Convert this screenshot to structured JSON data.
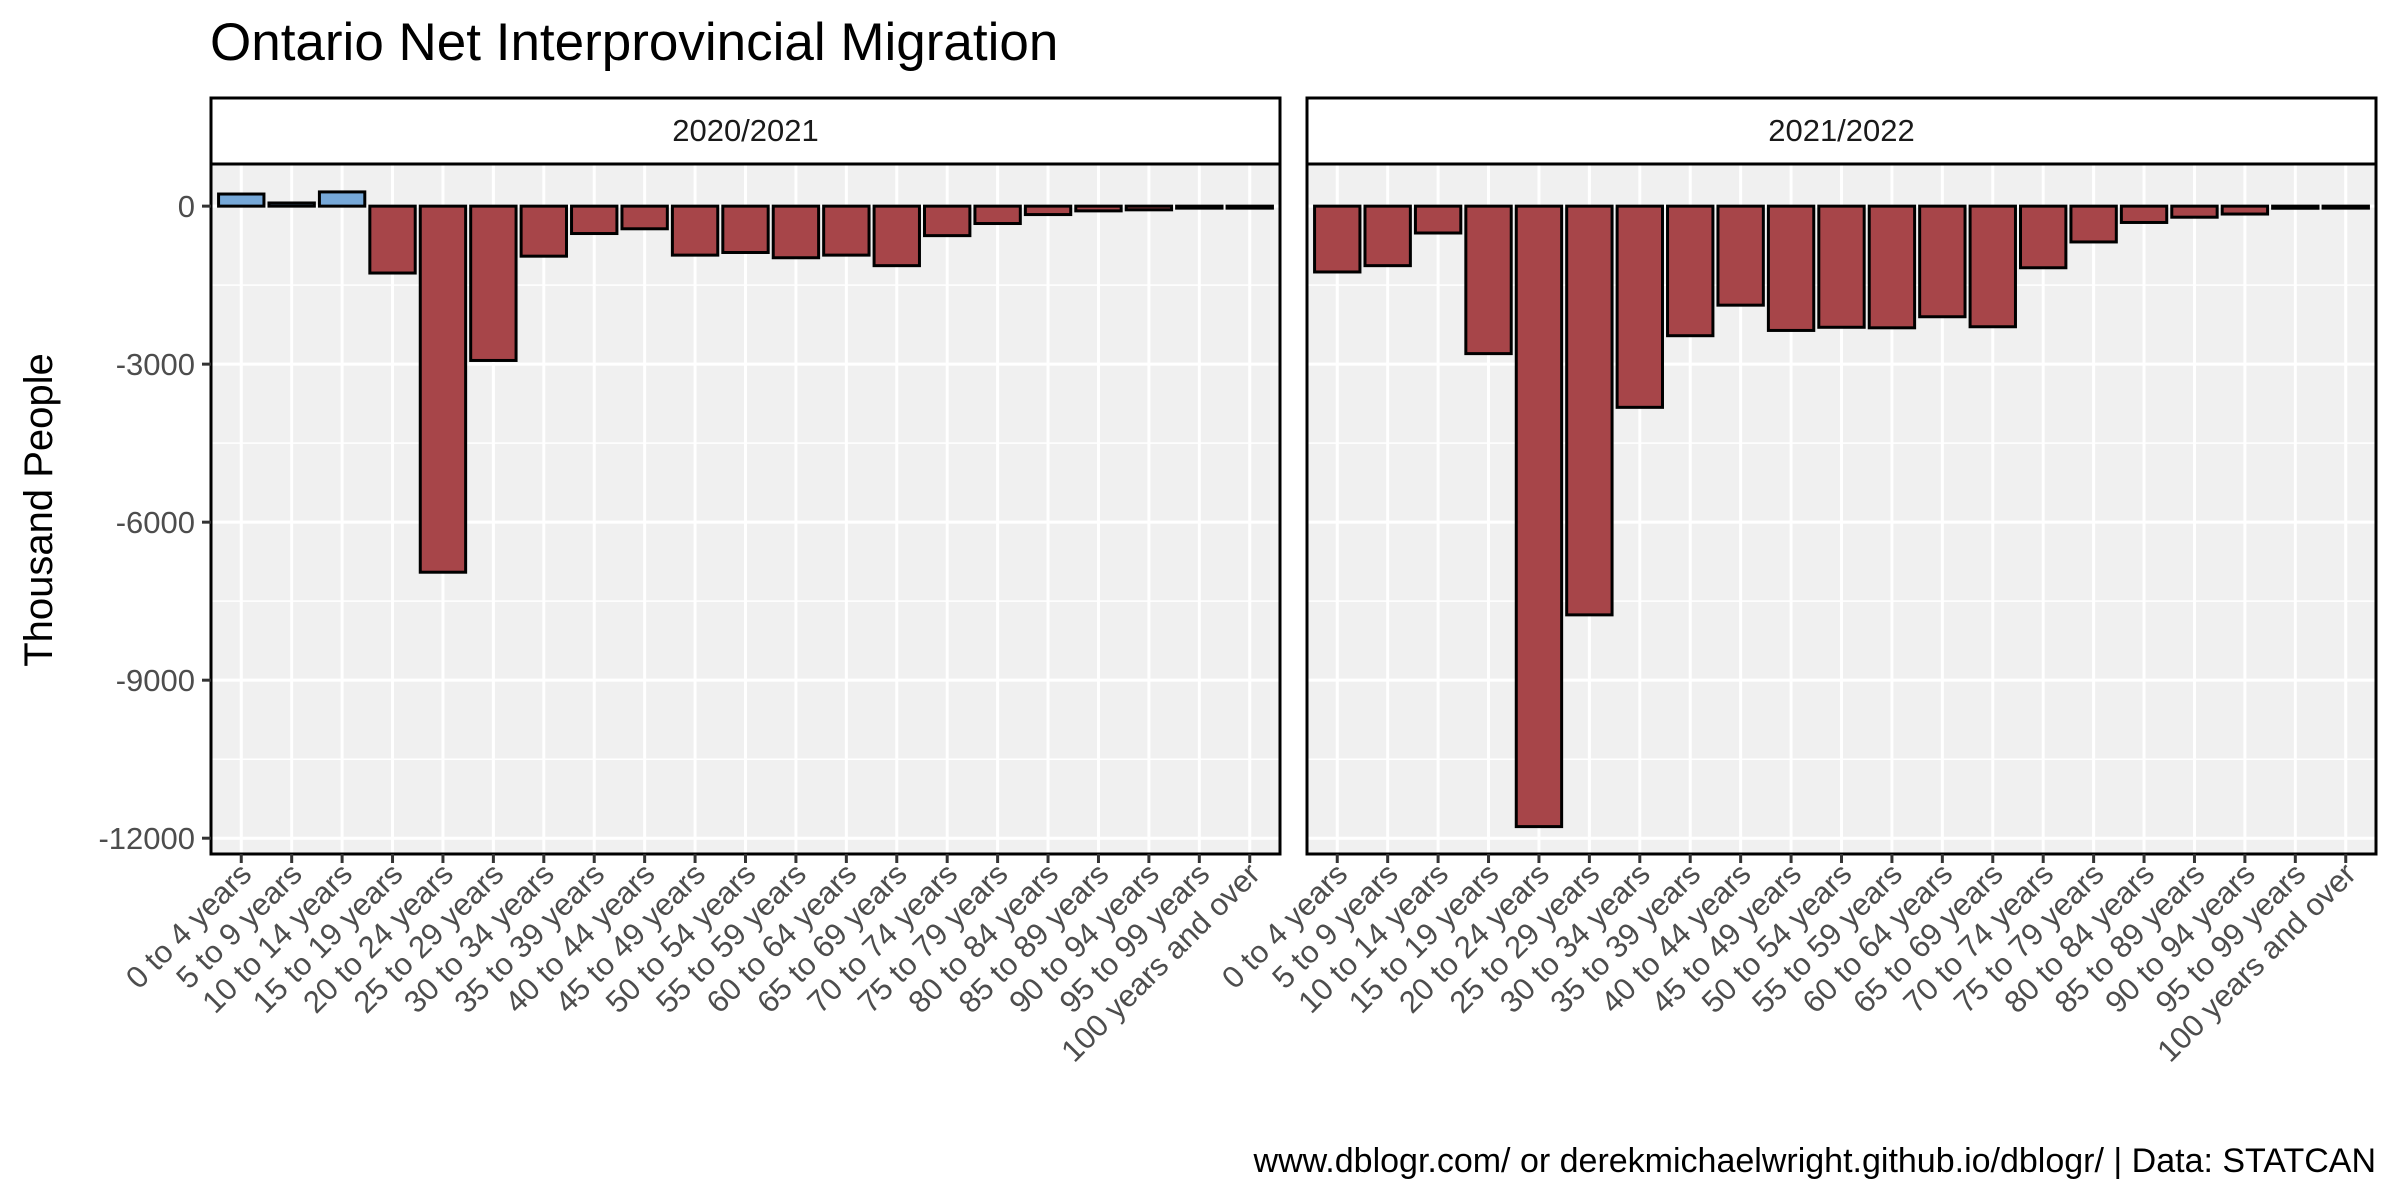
{
  "chart_data": {
    "type": "bar",
    "title": "Ontario Net Interprovincial Migration",
    "ylabel": "Thousand People",
    "xlabel": "",
    "caption": "www.dblogr.com/ or derekmichaelwright.github.io/dblogr/ | Data: STATCAN",
    "categories": [
      "0 to 4 years",
      "5 to 9 years",
      "10 to 14 years",
      "15 to 19 years",
      "20 to 24 years",
      "25 to 29 years",
      "30 to 34 years",
      "35 to 39 years",
      "40 to 44 years",
      "45 to 49 years",
      "50 to 54 years",
      "55 to 59 years",
      "60 to 64 years",
      "65 to 69 years",
      "70 to 74 years",
      "75 to 79 years",
      "80 to 84 years",
      "85 to 89 years",
      "90 to 94 years",
      "95 to 99 years",
      "100 years and over"
    ],
    "ylim": [
      -12300,
      800
    ],
    "yticks": [
      0,
      -3000,
      -6000,
      -9000,
      -12000
    ],
    "grid": true,
    "colors": {
      "positive": "#6fa3d6",
      "negative": "#a23b3f",
      "panel": "#f0f0f0",
      "grid": "#ffffff"
    },
    "panels": [
      {
        "name": "2020/2021",
        "values": [
          230,
          60,
          270,
          -1270,
          -6950,
          -2930,
          -950,
          -520,
          -430,
          -930,
          -880,
          -980,
          -930,
          -1130,
          -560,
          -330,
          -160,
          -90,
          -70,
          -30,
          -20
        ]
      },
      {
        "name": "2021/2022",
        "values": [
          -1250,
          -1130,
          -510,
          -2800,
          -11780,
          -7760,
          -3820,
          -2460,
          -1880,
          -2360,
          -2300,
          -2310,
          -2100,
          -2290,
          -1170,
          -680,
          -310,
          -210,
          -150,
          -40,
          -30
        ]
      }
    ]
  }
}
